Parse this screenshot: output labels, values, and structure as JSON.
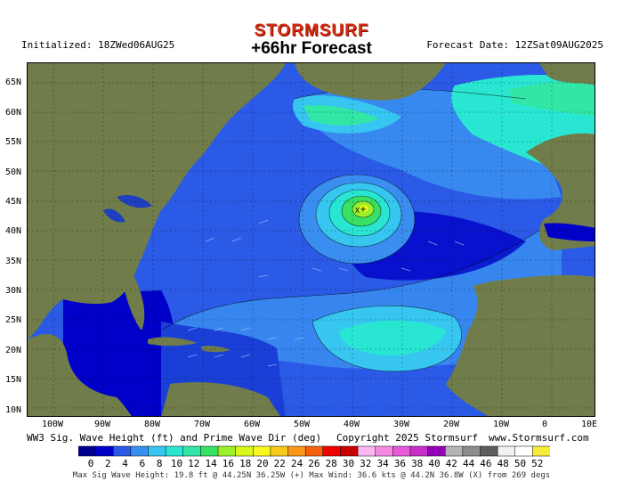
{
  "brand": "STORMSURF",
  "forecast_title": "+66hr Forecast",
  "initialized": "Initialized: 18ZWed06AUG25",
  "forecast_date": "Forecast Date: 12ZSat09AUG2025",
  "lat_labels": [
    "65N",
    "60N",
    "55N",
    "50N",
    "45N",
    "40N",
    "35N",
    "30N",
    "25N",
    "20N",
    "15N",
    "10N"
  ],
  "lon_labels": [
    "100W",
    "90W",
    "80W",
    "70W",
    "60W",
    "50W",
    "40W",
    "30W",
    "20W",
    "10W",
    "0",
    "10E"
  ],
  "footer": {
    "product": "WW3 Sig. Wave Height (ft) and Prime Wave Dir (deg)",
    "copyright": "Copyright 2025 Stormsurf",
    "site": "www.Stormsurf.com"
  },
  "legend": {
    "ticks": [
      "0",
      "2",
      "4",
      "6",
      "8",
      "10",
      "12",
      "14",
      "16",
      "18",
      "20",
      "22",
      "24",
      "26",
      "28",
      "30",
      "32",
      "34",
      "36",
      "38",
      "40",
      "42",
      "44",
      "46",
      "48",
      "50",
      "52"
    ],
    "colors": [
      "#000090",
      "#0000c8",
      "#2a5ae6",
      "#3a8ef0",
      "#36c6f0",
      "#29e6d2",
      "#32e6a6",
      "#38e064",
      "#9ef028",
      "#d8f81a",
      "#f8f820",
      "#f8c81c",
      "#f89818",
      "#f86010",
      "#f00000",
      "#c80000",
      "#fdb6ee",
      "#f58ae2",
      "#e65ad8",
      "#c82ec8",
      "#9400b4",
      "#b4b4b4",
      "#8c8c8c",
      "#5c5c5c",
      "#f0f0f0",
      "#ffffff",
      "#f8ec3a"
    ],
    "max_line": "Max Sig Wave Height: 19.8 ft @ 44.25N 36.25W (+)   Max Wind: 36.6 kts @ 44.2N 36.8W (X) from 269 degs"
  }
}
